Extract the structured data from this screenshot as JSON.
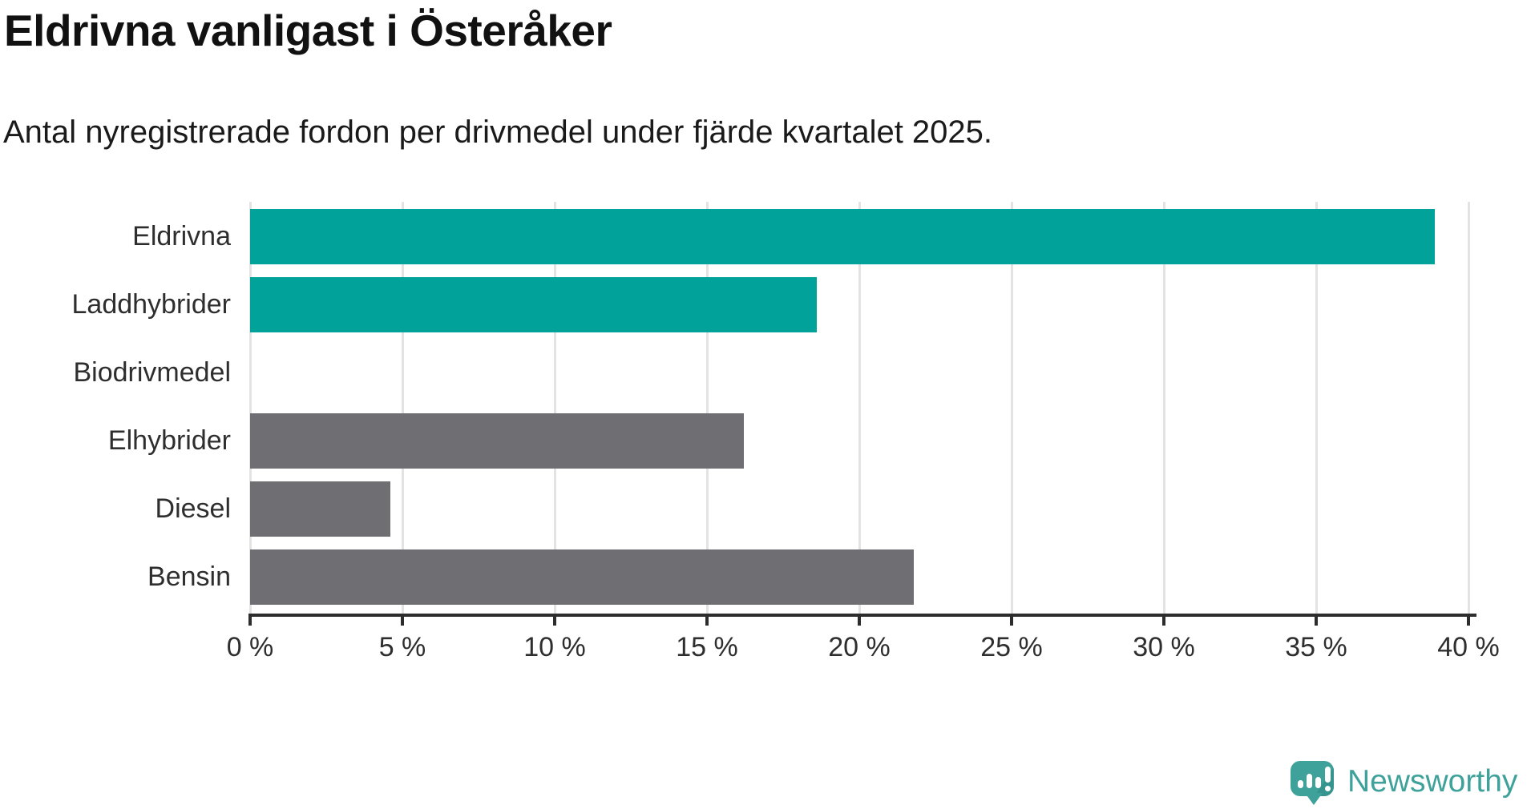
{
  "header": {
    "title": "Eldrivna vanligast i Österåker",
    "subtitle": "Antal nyregistrerade fordon per drivmedel under fjärde kvartalet 2025."
  },
  "chart_data": {
    "type": "bar",
    "orientation": "horizontal",
    "title": "Eldrivna vanligast i Österåker",
    "subtitle": "Antal nyregistrerade fordon per drivmedel under fjärde kvartalet 2025.",
    "categories": [
      "Eldrivna",
      "Laddhybrider",
      "Biodrivmedel",
      "Elhybrider",
      "Diesel",
      "Bensin"
    ],
    "values": [
      38.9,
      18.6,
      0,
      16.2,
      4.6,
      21.8
    ],
    "unit": "%",
    "bar_colors": [
      "#00a299",
      "#00a299",
      "#6e6e73",
      "#6e6e73",
      "#6e6e73",
      "#6e6e73"
    ],
    "highlight_color": "#00a299",
    "default_color": "#6e6e73",
    "xlim": [
      0,
      40
    ],
    "x_ticks": [
      0,
      5,
      10,
      15,
      20,
      25,
      30,
      35,
      40
    ],
    "x_tick_suffix": " %",
    "x_tick_labels": [
      "0 %",
      "5 %",
      "10 %",
      "15 %",
      "20 %",
      "25 %",
      "30 %",
      "35 %",
      "40 %"
    ],
    "grid": true,
    "gridline_color": "#e3e3e3",
    "axis_color": "#2d2d2d",
    "legend": "none"
  },
  "footer": {
    "brand": "Newsworthy",
    "brand_color": "#3ea29b",
    "logo_icon": "speech-bubble-bar-chart-icon"
  }
}
